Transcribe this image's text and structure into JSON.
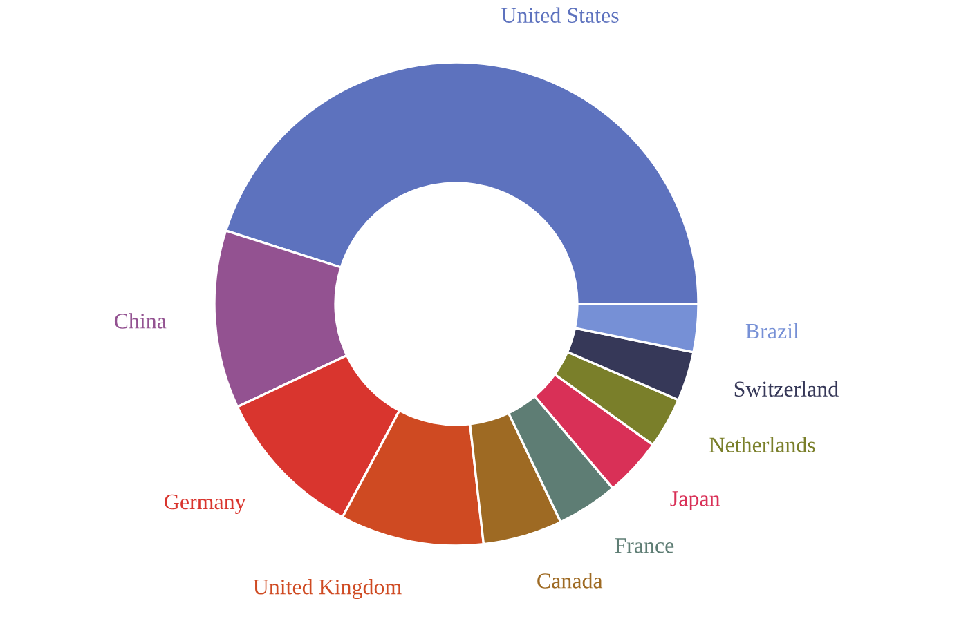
{
  "chart_data": {
    "type": "donut",
    "categories": [
      "United States",
      "China",
      "Germany",
      "United Kingdom",
      "Canada",
      "France",
      "Japan",
      "Netherlands",
      "Switzerland",
      "Brazil"
    ],
    "values": [
      45.1,
      11.9,
      10.2,
      9.6,
      5.3,
      4.1,
      3.9,
      3.4,
      3.3,
      3.2
    ],
    "colors": [
      "#5d72be",
      "#935291",
      "#d9352e",
      "#cf4a22",
      "#9e6a23",
      "#5e7d74",
      "#d93057",
      "#7a7f2a",
      "#363858",
      "#7690d6"
    ]
  }
}
